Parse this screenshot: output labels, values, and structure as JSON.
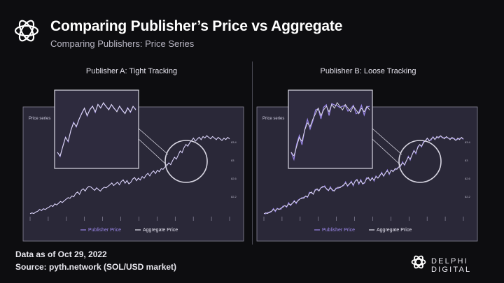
{
  "header": {
    "title": "Comparing Publisher’s Price vs Aggregate",
    "subtitle": "Comparing Publishers: Price Series"
  },
  "panels": [
    {
      "title": "Publisher A: Tight Tracking",
      "inner_label": "Price series",
      "legend": [
        "Publisher Price",
        "Aggregate Price"
      ]
    },
    {
      "title": "Publisher B: Loose Tracking",
      "inner_label": "Price series",
      "legend": [
        "Publisher Price",
        "Aggregate Price"
      ]
    }
  ],
  "footer": {
    "line1": "Data as of Oct 29, 2022",
    "line2": "Source: pyth.network (SOL/USD market)"
  },
  "brand": {
    "name": "DELPHI DIGITAL"
  },
  "colors": {
    "background": "#0d0d10",
    "plot_bg": "#2a2838",
    "publisher": "#9a86e8",
    "aggregate": "#e6e4f0",
    "frame": "#d8d6e2"
  },
  "chart_data": [
    {
      "type": "line",
      "title": "Publisher A: Tight Tracking",
      "series": [
        {
          "name": "Publisher Price",
          "values": [
            2,
            3,
            2,
            4,
            5,
            7,
            6,
            8,
            7,
            9,
            10,
            12,
            11,
            14,
            13,
            15,
            17,
            16,
            18,
            20,
            22,
            21,
            24,
            23,
            27,
            29,
            26,
            31,
            33,
            30,
            34,
            36,
            35,
            33,
            31,
            34,
            32,
            30,
            33,
            35,
            34,
            36,
            38,
            40,
            37,
            39,
            41,
            38,
            42,
            44,
            40,
            43,
            39,
            41,
            45,
            47,
            43,
            46,
            44,
            48,
            46,
            50,
            52,
            49,
            53,
            55,
            52,
            56,
            54,
            58,
            57,
            60,
            62,
            65,
            63,
            68,
            72,
            70,
            75,
            80,
            78,
            84,
            88,
            86,
            90,
            93,
            96,
            92,
            95,
            97,
            94,
            98,
            96,
            99,
            97,
            95,
            98,
            96,
            94,
            97,
            95,
            93,
            96,
            94,
            97,
            95
          ]
        },
        {
          "name": "Aggregate Price",
          "values": [
            2,
            3,
            2,
            4,
            5,
            7,
            6,
            8,
            7,
            9,
            10,
            12,
            11,
            14,
            13,
            15,
            17,
            16,
            18,
            20,
            22,
            21,
            24,
            23,
            27,
            29,
            26,
            31,
            33,
            30,
            34,
            36,
            35,
            33,
            31,
            34,
            32,
            30,
            33,
            35,
            34,
            36,
            38,
            40,
            37,
            39,
            41,
            38,
            42,
            44,
            40,
            43,
            39,
            41,
            45,
            47,
            43,
            46,
            44,
            48,
            46,
            50,
            52,
            49,
            53,
            55,
            52,
            56,
            54,
            58,
            57,
            60,
            62,
            65,
            63,
            68,
            72,
            70,
            75,
            80,
            78,
            84,
            88,
            86,
            90,
            93,
            96,
            92,
            95,
            97,
            94,
            98,
            96,
            99,
            97,
            95,
            98,
            96,
            94,
            97,
            95,
            93,
            96,
            94,
            97,
            95
          ]
        }
      ]
    },
    {
      "type": "line",
      "title": "Publisher B: Loose Tracking",
      "series": [
        {
          "name": "Publisher Price",
          "values": [
            2,
            3,
            2,
            4,
            5,
            7,
            6,
            8,
            7,
            9,
            10,
            12,
            11,
            14,
            13,
            15,
            17,
            16,
            18,
            20,
            22,
            21,
            24,
            23,
            27,
            29,
            26,
            31,
            33,
            30,
            34,
            36,
            35,
            33,
            31,
            34,
            32,
            30,
            33,
            35,
            34,
            36,
            38,
            40,
            37,
            39,
            41,
            38,
            42,
            44,
            40,
            43,
            39,
            41,
            45,
            47,
            43,
            46,
            44,
            48,
            46,
            50,
            52,
            49,
            53,
            55,
            52,
            56,
            54,
            58,
            57,
            60,
            62,
            65,
            63,
            68,
            72,
            70,
            75,
            80,
            78,
            84,
            88,
            86,
            90,
            93,
            96,
            92,
            95,
            97,
            94,
            98,
            96,
            99,
            97,
            95,
            98,
            96,
            94,
            97,
            95,
            93,
            96,
            94,
            97,
            95
          ]
        },
        {
          "name": "Aggregate Price",
          "values": [
            2,
            3,
            2,
            4,
            5,
            7,
            6,
            8,
            7,
            9,
            10,
            12,
            11,
            14,
            13,
            15,
            17,
            16,
            18,
            20,
            22,
            21,
            24,
            23,
            27,
            29,
            26,
            31,
            33,
            30,
            34,
            36,
            35,
            33,
            31,
            34,
            32,
            30,
            33,
            35,
            34,
            36,
            38,
            40,
            37,
            39,
            41,
            38,
            42,
            44,
            40,
            43,
            39,
            41,
            45,
            47,
            43,
            46,
            44,
            48,
            46,
            50,
            52,
            49,
            53,
            55,
            52,
            56,
            54,
            58,
            57,
            60,
            62,
            65,
            63,
            68,
            72,
            70,
            75,
            80,
            78,
            84,
            88,
            86,
            90,
            93,
            96,
            92,
            95,
            97,
            94,
            98,
            96,
            99,
            97,
            95,
            98,
            96,
            94,
            97,
            95,
            93,
            96,
            94,
            97,
            95
          ]
        }
      ]
    }
  ]
}
